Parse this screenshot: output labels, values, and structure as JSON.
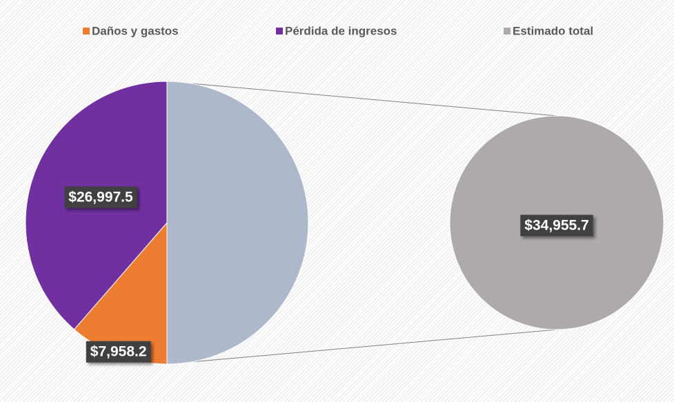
{
  "chart_data": {
    "type": "pie_of_pie",
    "categories": [
      "Daños y gastos",
      "Pérdida de ingresos",
      "Estimado total"
    ],
    "values": [
      7958.2,
      26997.5,
      34955.7
    ],
    "value_labels": [
      "$7,958.2",
      "$26,997.5",
      "$34,955.7"
    ],
    "colors": [
      "#ed7d31",
      "#7030a0",
      "#aeaaaa"
    ],
    "group_color": "#adb9ca",
    "legend": "top"
  }
}
